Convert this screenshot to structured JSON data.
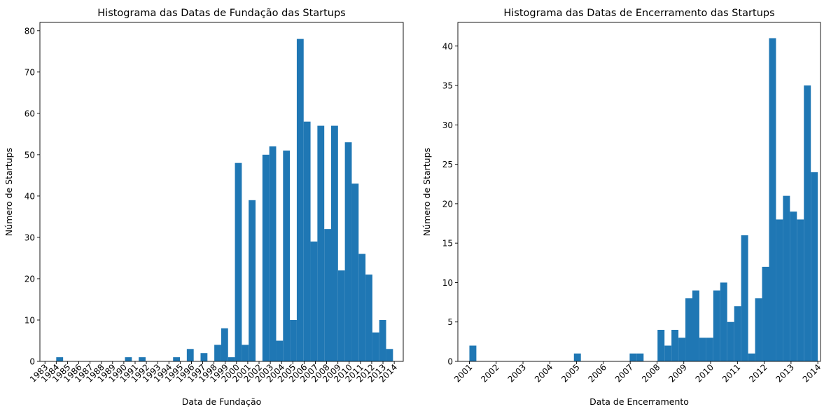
{
  "chart_data": [
    {
      "type": "bar",
      "title": "Histograma das Datas de Fundação das Startups",
      "xlabel": "Data de Fundação",
      "ylabel": "Número de Startups",
      "color": "#1f77b4",
      "xlim": [
        1982.55,
        2014.8
      ],
      "ylim": [
        0,
        82
      ],
      "xticks": [
        1983,
        1984,
        1985,
        1986,
        1987,
        1988,
        1989,
        1990,
        1991,
        1992,
        1993,
        1994,
        1995,
        1996,
        1997,
        1998,
        1999,
        2000,
        2001,
        2002,
        2003,
        2004,
        2005,
        2006,
        2007,
        2008,
        2009,
        2010,
        2011,
        2012,
        2013,
        2014
      ],
      "yticks": [
        0,
        10,
        20,
        30,
        40,
        50,
        60,
        70,
        80
      ],
      "bins": [
        1984.0,
        1984.61,
        1985.22,
        1985.83,
        1986.44,
        1987.05,
        1987.66,
        1988.27,
        1988.88,
        1989.49,
        1990.1,
        1990.71,
        1991.32,
        1991.93,
        1992.54,
        1993.15,
        1993.76,
        1994.37,
        1994.98,
        1995.59,
        1996.2,
        1996.81,
        1997.42,
        1998.03,
        1998.64,
        1999.25,
        1999.86,
        2000.47,
        2001.08,
        2001.69,
        2002.3,
        2002.91,
        2003.52,
        2004.13,
        2004.74,
        2005.35,
        2005.96,
        2006.57,
        2007.18,
        2007.79,
        2008.4,
        2009.01,
        2009.62,
        2010.23,
        2010.84,
        2011.45,
        2012.06,
        2012.67,
        2013.28
      ],
      "values": [
        1,
        0,
        0,
        0,
        0,
        0,
        0,
        0,
        0,
        0,
        1,
        0,
        1,
        0,
        0,
        0,
        0,
        1,
        0,
        3,
        0,
        2,
        0,
        4,
        8,
        1,
        48,
        4,
        39,
        0,
        50,
        52,
        5,
        51,
        10,
        78,
        58,
        29,
        57,
        32,
        57,
        22,
        53,
        43,
        26,
        21,
        7,
        10,
        3
      ]
    },
    {
      "type": "bar",
      "title": "Histograma das Datas de Encerramento das Startups",
      "xlabel": "Data de Encerramento",
      "ylabel": "Número de Startups",
      "color": "#1f77b4",
      "xlim": [
        2000.57,
        2014.1
      ],
      "ylim": [
        0,
        43
      ],
      "xticks": [
        2001,
        2002,
        2003,
        2004,
        2005,
        2006,
        2007,
        2008,
        2009,
        2010,
        2011,
        2012,
        2013,
        2014
      ],
      "yticks": [
        0,
        5,
        10,
        15,
        20,
        25,
        30,
        35,
        40
      ],
      "bins": [
        2001.0,
        2001.26,
        2001.52,
        2001.78,
        2002.04,
        2002.3,
        2002.56,
        2002.82,
        2003.08,
        2003.34,
        2003.6,
        2003.86,
        2004.12,
        2004.38,
        2004.64,
        2004.9,
        2005.16,
        2005.42,
        2005.68,
        2005.94,
        2006.2,
        2006.46,
        2006.72,
        2006.98,
        2007.24,
        2007.5,
        2007.76,
        2008.02,
        2008.28,
        2008.54,
        2008.8,
        2009.06,
        2009.32,
        2009.58,
        2009.84,
        2010.1,
        2010.36,
        2010.62,
        2010.88,
        2011.14,
        2011.4,
        2011.66,
        2011.92,
        2012.18,
        2012.44,
        2012.7,
        2012.96,
        2013.22,
        2013.48,
        2013.74
      ],
      "values": [
        2,
        0,
        0,
        0,
        0,
        0,
        0,
        0,
        0,
        0,
        0,
        0,
        0,
        0,
        0,
        1,
        0,
        0,
        0,
        0,
        0,
        0,
        0,
        1,
        1,
        0,
        0,
        4,
        2,
        4,
        3,
        8,
        9,
        3,
        3,
        9,
        10,
        5,
        7,
        16,
        1,
        8,
        12,
        41,
        18,
        21,
        19,
        18,
        35,
        24
      ]
    }
  ]
}
